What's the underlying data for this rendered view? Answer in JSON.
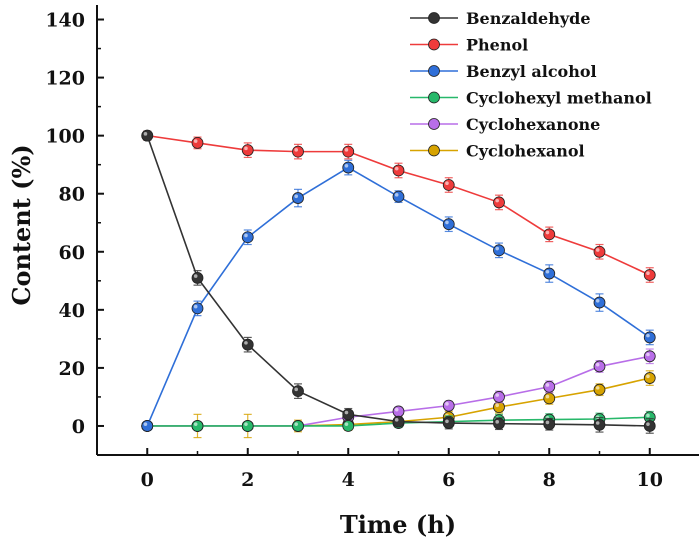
{
  "chart_data": {
    "type": "line",
    "title": "",
    "xlabel": "Time (h)",
    "ylabel": "Content (%)",
    "xlim": [
      -1,
      11
    ],
    "ylim": [
      -10,
      145
    ],
    "xticks": [
      0,
      2,
      4,
      6,
      8,
      10
    ],
    "yticks": [
      0,
      20,
      40,
      60,
      80,
      100,
      120,
      140
    ],
    "x": [
      0,
      1,
      2,
      3,
      4,
      5,
      6,
      7,
      8,
      9,
      10
    ],
    "grid": false,
    "legend_position": "top-right",
    "series": [
      {
        "name": "Benzaldehyde",
        "color": "#333333",
        "values": [
          100,
          51,
          28,
          12,
          4,
          1.5,
          1,
          0.8,
          0.6,
          0.4,
          0
        ],
        "errors": [
          1.5,
          2.5,
          2.5,
          2.5,
          2,
          1.5,
          2,
          2,
          2,
          2.5,
          2.5
        ]
      },
      {
        "name": "Phenol",
        "color": "#ee3b3b",
        "values": [
          100,
          97.5,
          95,
          94.5,
          94.5,
          88,
          83,
          77,
          66,
          60,
          52
        ],
        "errors": [
          1.5,
          2,
          2.5,
          2.5,
          2.5,
          2.5,
          2.5,
          2.5,
          2.5,
          2.5,
          2.5
        ]
      },
      {
        "name": "Benzyl alcohol",
        "color": "#2f6fd8",
        "values": [
          0,
          40.5,
          65,
          78.5,
          89,
          79,
          69.5,
          60.5,
          52.5,
          42.5,
          30.5
        ],
        "errors": [
          1.5,
          2.5,
          2.5,
          3,
          2.5,
          2,
          2.5,
          2.5,
          3,
          3,
          2.5
        ]
      },
      {
        "name": "Cyclohexyl methanol",
        "color": "#27b86a",
        "values": [
          0,
          0,
          0,
          0,
          0,
          1,
          1.5,
          2,
          2.2,
          2.4,
          3
        ],
        "errors": [
          1,
          1,
          1,
          1,
          1,
          1.5,
          2,
          2,
          2,
          2,
          2
        ]
      },
      {
        "name": "Cyclohexanone",
        "color": "#b86ee8",
        "values": [
          0,
          0,
          0,
          0,
          3,
          5,
          7,
          10,
          13.5,
          20.5,
          24
        ],
        "errors": [
          1,
          1,
          1,
          1,
          1.5,
          1.5,
          1.5,
          2,
          2,
          2,
          2.5
        ]
      },
      {
        "name": "Cyclohexanol",
        "color": "#d7a300",
        "values": [
          0,
          0,
          0,
          0,
          0.5,
          1.5,
          3,
          6.5,
          9.5,
          12.5,
          16.5
        ],
        "errors": [
          1,
          4,
          4,
          2,
          2,
          2,
          2,
          2,
          2,
          2,
          2.5
        ]
      }
    ]
  }
}
